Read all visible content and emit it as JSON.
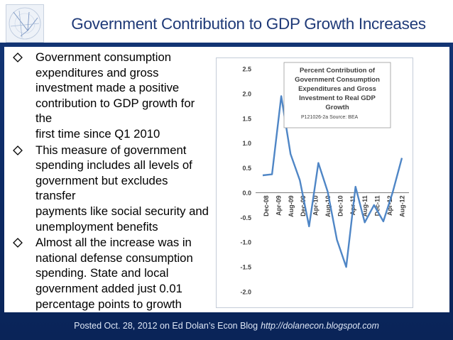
{
  "slide": {
    "title": "Government Contribution to GDP Growth Increases",
    "bullets": [
      {
        "lines": [
          "Government consumption",
          "expenditures and gross",
          "investment made a positive",
          "contribution to GDP growth for the",
          "first time since Q1 2010"
        ]
      },
      {
        "lines": [
          "This measure of government",
          "spending includes all levels of",
          "government but excludes transfer",
          "payments like social security and",
          "unemployment benefits"
        ]
      },
      {
        "lines": [
          "Almost all the increase was in",
          "national defense consumption",
          "spending. State and local",
          "government added just 0.01",
          "percentage points to growth"
        ]
      }
    ],
    "footer": {
      "text": "Posted Oct. 28, 2012 on Ed Dolan’s Econ Blog",
      "url": "http://dolanecon.blogspot.com"
    }
  },
  "chart_data": {
    "type": "line",
    "title_lines": [
      "Percent Contribution of",
      "Government Consumption",
      "Expenditures and Gross",
      "Investment to Real GDP",
      "Growth"
    ],
    "source": "P121026-2a Source: BEA",
    "ylim": [
      -2.0,
      2.5
    ],
    "yticks": [
      "2.5",
      "2.0",
      "1.5",
      "1.0",
      "0.5",
      "0.0",
      "-0.5",
      "-1.0",
      "-1.5",
      "-2.0"
    ],
    "xtick_labels": [
      "Dec-08",
      "Apr-09",
      "Aug-09",
      "Dec-09",
      "Apr-10",
      "Aug-10",
      "Dec-10",
      "Apr-11",
      "Aug-11",
      "Dec-11",
      "Apr-12",
      "Aug-12"
    ],
    "grid": false,
    "line_color": "#4f86c6",
    "series": [
      {
        "values": [
          0.35,
          0.37,
          1.95,
          0.78,
          0.25,
          -0.68,
          0.6,
          0.02,
          -0.95,
          -1.5,
          0.12,
          -0.6,
          -0.25,
          -0.58,
          0.0,
          0.7
        ]
      }
    ]
  }
}
